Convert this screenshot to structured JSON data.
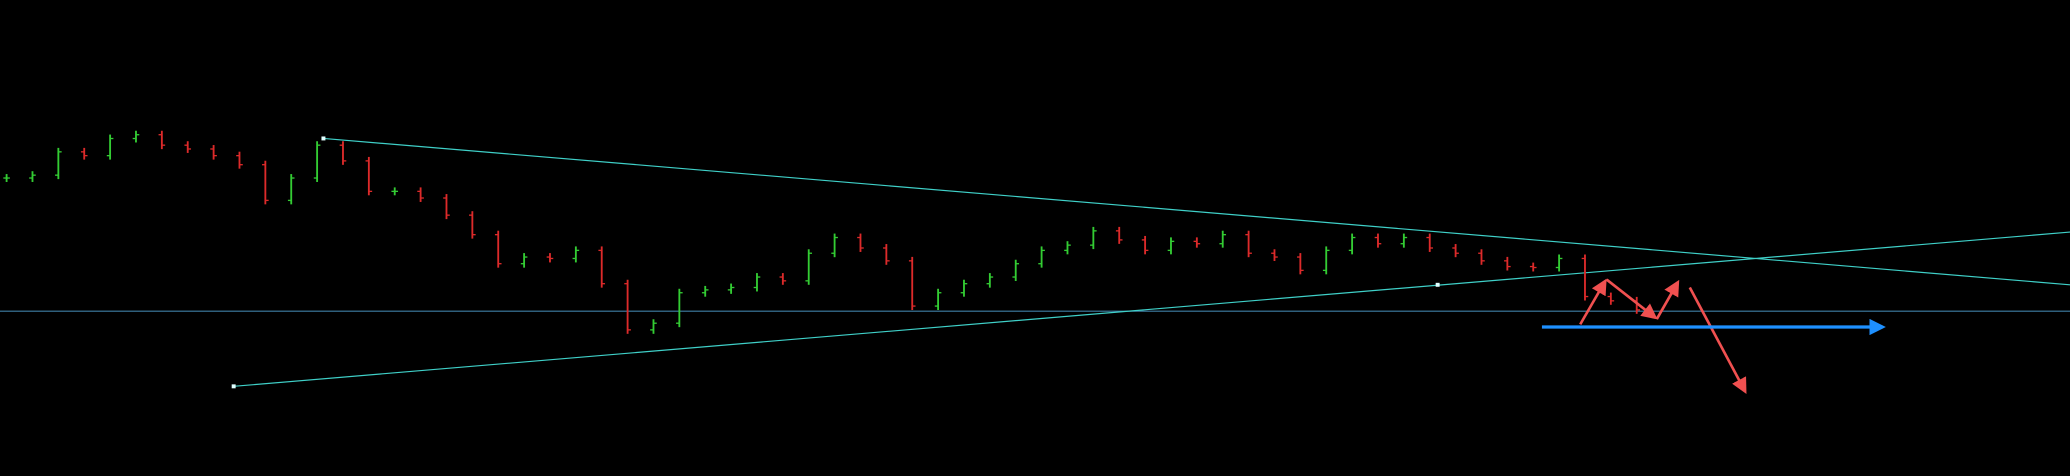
{
  "chart_data": {
    "type": "ohlc",
    "values": [
      62.6,
      63.2,
      68.1,
      67.3,
      70.9,
      71.7,
      69.5,
      68.7,
      67.3,
      65.4,
      57.9,
      62.6,
      69.5,
      66.2,
      59.8,
      59.8,
      58.4,
      54.8,
      50.7,
      44.6,
      46.0,
      45.7,
      47.4,
      40.4,
      30.7,
      32.1,
      38.5,
      39.1,
      39.6,
      41.8,
      41.0,
      46.8,
      50.1,
      47.9,
      45.2,
      35.7,
      38.5,
      40.4,
      41.8,
      44.6,
      47.4,
      48.5,
      51.5,
      49.6,
      47.4,
      49.3,
      48.8,
      50.7,
      46.8,
      46.0,
      43.2,
      47.4,
      50.1,
      48.8,
      50.1,
      47.9,
      46.8,
      45.2,
      44.0,
      43.8,
      45.7,
      37.7,
      36.8,
      34.9
    ],
    "ylim": [
      0,
      100
    ],
    "up_color": "#33cc33",
    "down_color": "#dd2a2a"
  }
}
